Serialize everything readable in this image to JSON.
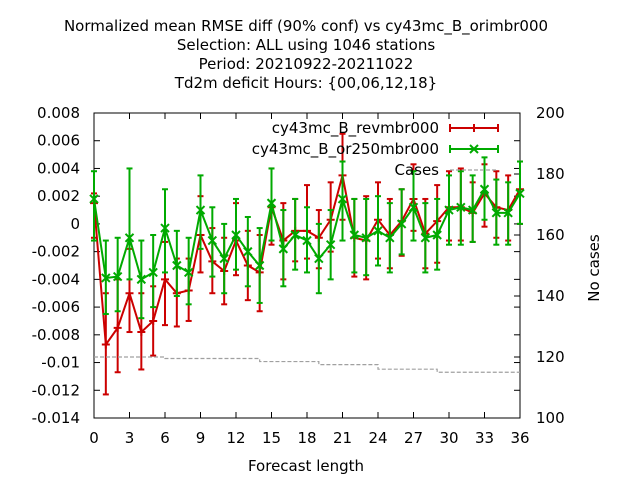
{
  "chart_data": {
    "type": "line",
    "title_lines": [
      "Normalized mean RMSE diff (90% conf) vs cy43mc_B_orimbr000",
      "Selection: ALL using  1046 stations",
      "Period: 20210922-20211022",
      "Td2m deficit   Hours: {00,06,12,18}"
    ],
    "xlabel": "Forecast length",
    "ylabel": "",
    "y2label": "No cases",
    "xlim": [
      0,
      36
    ],
    "ylim": [
      -0.014,
      0.008
    ],
    "y2lim": [
      100,
      200
    ],
    "xticks": [
      "0",
      "3",
      "6",
      "9",
      "12",
      "15",
      "18",
      "21",
      "24",
      "27",
      "30",
      "33",
      "36"
    ],
    "yticks": [
      "0.008",
      "0.006",
      "0.004",
      "0.002",
      "0",
      "-0.002",
      "-0.004",
      "-0.006",
      "-0.008",
      "-0.01",
      "-0.012",
      "-0.014"
    ],
    "y2ticks": [
      "200",
      "180",
      "160",
      "140",
      "120",
      "100"
    ],
    "legend_position": "top-right",
    "grid": false,
    "x": [
      0,
      1,
      2,
      3,
      4,
      5,
      6,
      7,
      8,
      9,
      10,
      11,
      12,
      13,
      14,
      15,
      16,
      17,
      18,
      19,
      20,
      21,
      22,
      23,
      24,
      25,
      26,
      27,
      28,
      29,
      30,
      31,
      32,
      33,
      34,
      35,
      36
    ],
    "series": [
      {
        "name": "cy43mc_B_revmbr000",
        "color": "#cc0000",
        "marker": "plus",
        "y": [
          0.0015,
          -0.0087,
          -0.0075,
          -0.005,
          -0.0078,
          -0.007,
          -0.004,
          -0.005,
          -0.0048,
          -0.0008,
          -0.0027,
          -0.0034,
          -0.0012,
          -0.003,
          -0.0035,
          0.0012,
          -0.0012,
          -0.0005,
          -0.0005,
          -0.001,
          0.0003,
          0.0035,
          -0.001,
          -0.0012,
          0.0003,
          -0.0008,
          0.0002,
          0.0018,
          -0.0007,
          0.0002,
          0.0012,
          0.0012,
          0.0008,
          0.0022,
          0.0012,
          0.001,
          0.0025
        ],
        "ylow": [
          -0.001,
          -0.0123,
          -0.0107,
          -0.0078,
          -0.0105,
          -0.0095,
          -0.0073,
          -0.0074,
          -0.007,
          -0.0035,
          -0.005,
          -0.0058,
          -0.0037,
          -0.0055,
          -0.0063,
          -0.0015,
          -0.004,
          -0.0027,
          -0.0025,
          -0.0032,
          -0.002,
          0.0003,
          -0.0038,
          -0.004,
          -0.0025,
          -0.0032,
          -0.0023,
          -0.0005,
          -0.0032,
          -0.0028,
          -0.0012,
          -0.0012,
          -0.0013,
          -0.0002,
          -0.001,
          -0.0012,
          0.0
        ],
        "yhigh": [
          0.0022,
          -0.005,
          -0.004,
          -0.0018,
          -0.005,
          -0.0045,
          -0.0013,
          -0.0025,
          -0.0025,
          0.002,
          -0.0003,
          -0.001,
          0.0015,
          -0.0005,
          -0.0008,
          0.004,
          0.0015,
          0.0018,
          0.0028,
          0.001,
          0.003,
          0.0065,
          0.0018,
          0.002,
          0.003,
          0.0018,
          0.0025,
          0.0043,
          0.0018,
          0.0028,
          0.0038,
          0.004,
          0.003,
          0.0043,
          0.0038,
          0.0035,
          0.0045
        ]
      },
      {
        "name": "cy43mc_B_or250mbr000",
        "color": "#00aa00",
        "marker": "cross",
        "y": [
          0.0018,
          -0.0039,
          -0.0038,
          -0.001,
          -0.004,
          -0.0035,
          -0.0003,
          -0.003,
          -0.0035,
          0.001,
          -0.0012,
          -0.0025,
          -0.0008,
          -0.002,
          -0.003,
          0.0015,
          -0.0018,
          -0.0008,
          -0.0012,
          -0.0025,
          -0.0015,
          0.0018,
          -0.0008,
          -0.001,
          -0.0005,
          -0.001,
          0.0,
          0.0012,
          -0.001,
          -0.0008,
          0.001,
          0.0012,
          0.001,
          0.0025,
          0.0008,
          0.0008,
          0.0022
        ],
        "ylow": [
          -0.0012,
          -0.0065,
          -0.0063,
          -0.004,
          -0.0068,
          -0.006,
          -0.0035,
          -0.0052,
          -0.0058,
          -0.0018,
          -0.0038,
          -0.005,
          -0.0033,
          -0.0045,
          -0.0057,
          -0.0012,
          -0.0045,
          -0.0033,
          -0.0035,
          -0.005,
          -0.004,
          -0.0012,
          -0.0035,
          -0.0037,
          -0.003,
          -0.0035,
          -0.0022,
          -0.0012,
          -0.0035,
          -0.0033,
          -0.0015,
          -0.0015,
          -0.0013,
          0.0003,
          -0.0015,
          -0.0015,
          0.0
        ],
        "yhigh": [
          0.0038,
          -0.0012,
          -0.001,
          0.004,
          -0.0012,
          -0.0008,
          0.0025,
          -0.0005,
          -0.001,
          0.0035,
          0.0012,
          0.0,
          0.0018,
          0.0005,
          -0.0003,
          0.004,
          0.001,
          0.0018,
          0.0012,
          0.0,
          0.001,
          0.0045,
          0.0018,
          0.0018,
          0.002,
          0.0015,
          0.0025,
          0.0038,
          0.0015,
          0.0018,
          0.0035,
          0.0038,
          0.0035,
          0.0048,
          0.0032,
          0.003,
          0.0045
        ]
      },
      {
        "name": "Cases",
        "color": "#a0a0a0",
        "axis": "y2",
        "dashed": true,
        "y": [
          120,
          120,
          120,
          120,
          120,
          120,
          119.5,
          119.5,
          119.5,
          119.5,
          119.5,
          119.5,
          119.5,
          119.5,
          118.5,
          118.5,
          118.5,
          118.5,
          118.5,
          117.5,
          117.5,
          117.5,
          117.5,
          117.5,
          116,
          116,
          116,
          116,
          116,
          115,
          115,
          115,
          115,
          115,
          115,
          115,
          115
        ]
      }
    ]
  }
}
